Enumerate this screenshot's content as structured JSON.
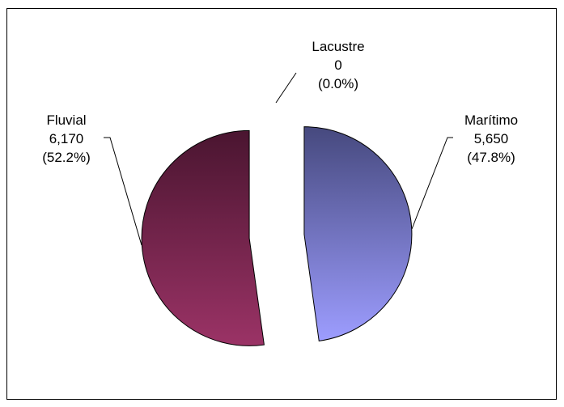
{
  "chart_data": {
    "type": "pie",
    "title": "",
    "exploded": true,
    "slices": [
      {
        "category": "Marítimo",
        "value_text": "5,650",
        "percent_text": "(47.8%)",
        "value": 5650,
        "percent": 47.8,
        "colors": [
          "#46497e",
          "#9d9dff"
        ]
      },
      {
        "category": "Lacustre",
        "value_text": "0",
        "percent_text": "(0.0%)",
        "value": 0,
        "percent": 0.0,
        "colors": [
          "#888888",
          "#888888"
        ]
      },
      {
        "category": "Fluvial",
        "value_text": "6,170",
        "percent_text": "(52.2%)",
        "value": 6170,
        "percent": 52.2,
        "colors": [
          "#4a1530",
          "#9b3366"
        ]
      }
    ]
  }
}
